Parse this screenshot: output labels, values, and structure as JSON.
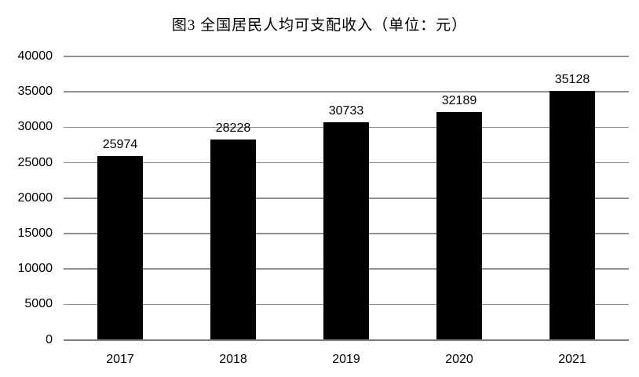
{
  "chart_data": {
    "type": "bar",
    "title": "图3 全国居民人均可支配收入（单位：元）",
    "categories": [
      "2017",
      "2018",
      "2019",
      "2020",
      "2021"
    ],
    "values": [
      25974,
      28228,
      30733,
      32189,
      35128
    ],
    "value_labels": [
      "25974",
      "28228",
      "30733",
      "32189",
      "35128"
    ],
    "xlabel": "",
    "ylabel": "",
    "ylim": [
      0,
      40000
    ],
    "yticks": [
      0,
      5000,
      10000,
      15000,
      20000,
      25000,
      30000,
      35000,
      40000
    ],
    "ytick_labels": [
      "0",
      "5000",
      "10000",
      "15000",
      "20000",
      "25000",
      "30000",
      "35000",
      "40000"
    ],
    "grid": true,
    "legend_position": "none",
    "colors": {
      "bar": "#000000",
      "gridline": "#8f8f8f",
      "axis": "#7f7f7f",
      "text": "#000000",
      "background": "#ffffff"
    }
  }
}
